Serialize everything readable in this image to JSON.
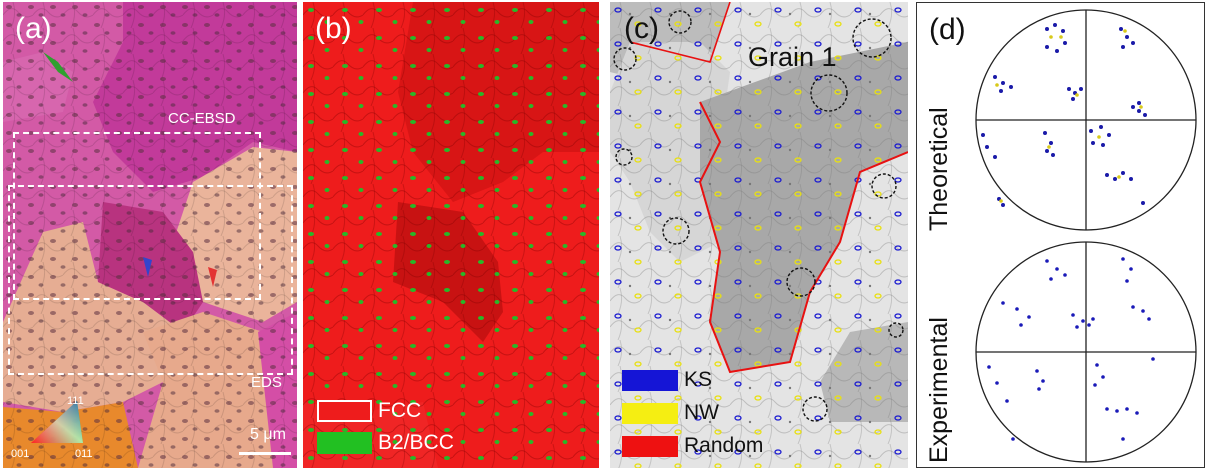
{
  "panels": {
    "a": {
      "label": "(a)",
      "region_ebsd": "CC-EBSD",
      "region_eds": "EDS",
      "scale_bar": "5 μm",
      "triangle": {
        "top": "111",
        "left": "001",
        "right": "011"
      }
    },
    "b": {
      "label": "(b)",
      "legend": [
        {
          "name": "FCC",
          "color": "#ee1c1c",
          "outline": true
        },
        {
          "name": "B2/BCC",
          "color": "#22c022",
          "outline": false
        }
      ]
    },
    "c": {
      "label": "(c)",
      "grain_label": "Grain 1",
      "legend": [
        {
          "name": "KS",
          "color": "#1515d6"
        },
        {
          "name": "NW",
          "color": "#f5ee12"
        },
        {
          "name": "Random",
          "color": "#ee1111"
        }
      ]
    },
    "d": {
      "label": "(d)",
      "plots": [
        {
          "name": "Theoretical"
        },
        {
          "name": "Experimental"
        }
      ]
    }
  },
  "colors": {
    "pink": "#d35aa6",
    "magenta": "#c23a9a",
    "peach": "#eab49b",
    "orange": "#e8892c",
    "red_fcc": "#ee1c1c",
    "dark_red": "#c81212",
    "gray_light": "#e4e4e4",
    "gray_dark": "#a8a8a8"
  }
}
